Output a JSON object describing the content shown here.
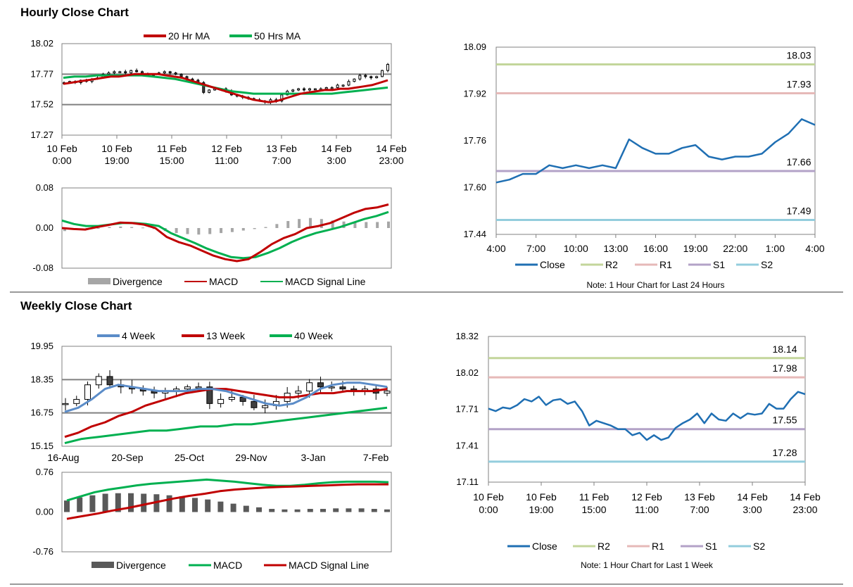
{
  "sections": {
    "hourly_title": "Hourly Close Chart",
    "weekly_title": "Weekly Close Chart"
  },
  "colors": {
    "red": "#c00000",
    "green": "#00b050",
    "blue": "#1f6fb3",
    "weekblue": "#5b8cc8",
    "r2": "#c3d69b",
    "r1": "#e6b9b8",
    "s1": "#b3a2c7",
    "s2": "#93cddd",
    "grid": "#808080",
    "bar": "#a6a6a6",
    "darkbar": "#595959"
  },
  "chart_data": [
    {
      "id": "hourly_price",
      "type": "candlestick",
      "ylim": [
        17.27,
        18.02
      ],
      "yticks": [
        "18.02",
        "17.77",
        "17.52",
        "17.27"
      ],
      "xticks": [
        [
          "10 Feb",
          "0:00"
        ],
        [
          "10 Feb",
          "19:00"
        ],
        [
          "11 Feb",
          "15:00"
        ],
        [
          "12 Feb",
          "11:00"
        ],
        [
          "13 Feb",
          "7:00"
        ],
        [
          "14 Feb",
          "3:00"
        ],
        [
          "14 Feb",
          "23:00"
        ]
      ],
      "legend": [
        "20 Hr MA",
        "50 Hrs MA"
      ],
      "close": [
        17.7,
        17.71,
        17.7,
        17.72,
        17.71,
        17.73,
        17.74,
        17.77,
        17.78,
        17.79,
        17.79,
        17.78,
        17.8,
        17.79,
        17.77,
        17.76,
        17.77,
        17.78,
        17.79,
        17.78,
        17.77,
        17.75,
        17.73,
        17.72,
        17.7,
        17.62,
        17.64,
        17.65,
        17.65,
        17.63,
        17.6,
        17.59,
        17.58,
        17.57,
        17.56,
        17.55,
        17.54,
        17.56,
        17.55,
        17.6,
        17.63,
        17.64,
        17.65,
        17.64,
        17.65,
        17.65,
        17.65,
        17.66,
        17.66,
        17.68,
        17.68,
        17.71,
        17.73,
        17.76,
        17.75,
        17.74,
        17.75,
        17.8,
        17.85
      ],
      "ma20": [
        17.69,
        17.7,
        17.71,
        17.72,
        17.73,
        17.74,
        17.75,
        17.75,
        17.76,
        17.77,
        17.77,
        17.77,
        17.77,
        17.76,
        17.75,
        17.74,
        17.72,
        17.7,
        17.68,
        17.66,
        17.64,
        17.62,
        17.6,
        17.58,
        17.56,
        17.55,
        17.54,
        17.55,
        17.57,
        17.59,
        17.61,
        17.62,
        17.63,
        17.64,
        17.64,
        17.65,
        17.65,
        17.66,
        17.67,
        17.68,
        17.7,
        17.72
      ],
      "ma50": [
        17.74,
        17.75,
        17.75,
        17.76,
        17.76,
        17.76,
        17.76,
        17.76,
        17.75,
        17.74,
        17.73,
        17.71,
        17.69,
        17.67,
        17.65,
        17.63,
        17.62,
        17.61,
        17.61,
        17.61,
        17.61,
        17.61,
        17.61,
        17.61,
        17.61,
        17.62,
        17.63,
        17.64,
        17.65,
        17.66
      ]
    },
    {
      "id": "hourly_macd",
      "type": "line+bar",
      "ylim": [
        -0.08,
        0.08
      ],
      "yticks": [
        "0.08",
        "0.00",
        "-0.08"
      ],
      "legend": [
        "Divergence",
        "MACD",
        "MACD Signal Line"
      ],
      "divergence": [
        -0.006,
        -0.004,
        -0.002,
        0.0,
        0.002,
        0.003,
        0.002,
        0.001,
        -0.002,
        -0.006,
        -0.01,
        -0.012,
        -0.013,
        -0.012,
        -0.01,
        -0.008,
        -0.005,
        -0.002,
        0.002,
        0.008,
        0.014,
        0.018,
        0.02,
        0.018,
        0.015,
        0.013,
        0.012,
        0.012,
        0.012,
        0.013
      ],
      "macd": [
        0.0,
        -0.002,
        -0.003,
        0.002,
        0.006,
        0.011,
        0.01,
        0.007,
        0.0,
        -0.018,
        -0.028,
        -0.035,
        -0.045,
        -0.055,
        -0.062,
        -0.066,
        -0.062,
        -0.048,
        -0.032,
        -0.02,
        -0.012,
        0.0,
        0.004,
        0.01,
        0.02,
        0.03,
        0.038,
        0.041,
        0.047
      ],
      "signal": [
        0.015,
        0.008,
        0.004,
        0.004,
        0.007,
        0.01,
        0.01,
        0.008,
        0.004,
        -0.01,
        -0.02,
        -0.03,
        -0.041,
        -0.05,
        -0.058,
        -0.06,
        -0.058,
        -0.05,
        -0.04,
        -0.028,
        -0.018,
        -0.01,
        -0.004,
        0.002,
        0.01,
        0.018,
        0.024,
        0.032
      ]
    },
    {
      "id": "hourly_24h",
      "type": "line",
      "ylim": [
        17.44,
        18.09
      ],
      "yticks": [
        "18.09",
        "17.92",
        "17.76",
        "17.60",
        "17.44"
      ],
      "xticks": [
        "4:00",
        "7:00",
        "10:00",
        "13:00",
        "16:00",
        "19:00",
        "22:00",
        "1:00",
        "4:00"
      ],
      "levels": {
        "R2": 18.03,
        "R1": 17.93,
        "S1": 17.66,
        "S2": 17.49
      },
      "level_labels": {
        "R2": "18.03",
        "R1": "17.93",
        "S1": "17.66",
        "S2": "17.49"
      },
      "close": [
        17.62,
        17.63,
        17.65,
        17.65,
        17.68,
        17.67,
        17.68,
        17.67,
        17.68,
        17.67,
        17.77,
        17.74,
        17.72,
        17.72,
        17.74,
        17.75,
        17.71,
        17.7,
        17.71,
        17.71,
        17.72,
        17.76,
        17.79,
        17.84,
        17.82
      ],
      "legend": [
        "Close",
        "R2",
        "R1",
        "S1",
        "S2"
      ],
      "note": "Note: 1 Hour Chart for Last 24 Hours"
    },
    {
      "id": "weekly_price",
      "type": "candlestick",
      "ylim": [
        15.15,
        19.95
      ],
      "yticks": [
        "19.95",
        "18.35",
        "16.75",
        "15.15"
      ],
      "xticks": [
        "16-Aug",
        "20-Sep",
        "25-Oct",
        "29-Nov",
        "3-Jan",
        "7-Feb"
      ],
      "legend": [
        "4 Week",
        "13 Week",
        "40 Week"
      ],
      "close": [
        17.2,
        17.4,
        18.1,
        18.5,
        18.1,
        18.0,
        17.9,
        17.8,
        17.7,
        17.8,
        17.9,
        18.0,
        18.0,
        17.2,
        17.4,
        17.5,
        17.3,
        17.0,
        17.1,
        17.3,
        17.7,
        17.8,
        18.2,
        18.0,
        18.0,
        17.9,
        17.8,
        17.9,
        17.7,
        17.8
      ],
      "wk4": [
        16.8,
        17.0,
        17.4,
        17.9,
        18.1,
        18.0,
        17.9,
        17.8,
        17.8,
        17.8,
        17.9,
        17.9,
        17.8,
        17.6,
        17.4,
        17.2,
        17.1,
        17.2,
        17.5,
        17.9,
        18.1,
        18.2,
        18.2,
        18.1,
        18.0
      ],
      "wk13": [
        15.6,
        15.8,
        16.1,
        16.3,
        16.6,
        16.8,
        17.1,
        17.3,
        17.5,
        17.7,
        17.8,
        17.9,
        17.9,
        17.8,
        17.7,
        17.6,
        17.5,
        17.5,
        17.6,
        17.7,
        17.7,
        17.8,
        17.8,
        17.8,
        17.9
      ],
      "wk40": [
        15.3,
        15.5,
        15.6,
        15.7,
        15.8,
        15.9,
        15.9,
        16.0,
        16.1,
        16.1,
        16.2,
        16.2,
        16.3,
        16.4,
        16.5,
        16.6,
        16.7,
        16.8,
        16.9,
        17.0
      ]
    },
    {
      "id": "weekly_macd",
      "type": "line+bar",
      "ylim": [
        -0.76,
        0.76
      ],
      "yticks": [
        "0.76",
        "0.00",
        "-0.76"
      ],
      "legend": [
        "Divergence",
        "MACD",
        "MACD Signal Line"
      ],
      "divergence": [
        0.22,
        0.28,
        0.32,
        0.35,
        0.36,
        0.36,
        0.35,
        0.34,
        0.32,
        0.3,
        0.27,
        0.24,
        0.2,
        0.16,
        0.12,
        0.09,
        0.06,
        0.05,
        0.05,
        0.06,
        0.06,
        0.07,
        0.07,
        0.07,
        0.06,
        0.05
      ],
      "macd": [
        0.22,
        0.3,
        0.38,
        0.43,
        0.47,
        0.51,
        0.54,
        0.56,
        0.58,
        0.6,
        0.62,
        0.6,
        0.58,
        0.55,
        0.52,
        0.5,
        0.5,
        0.52,
        0.55,
        0.57,
        0.58,
        0.58,
        0.58,
        0.57
      ],
      "signal": [
        -0.13,
        -0.08,
        -0.03,
        0.03,
        0.08,
        0.14,
        0.2,
        0.26,
        0.31,
        0.35,
        0.4,
        0.43,
        0.45,
        0.47,
        0.48,
        0.49,
        0.5,
        0.51,
        0.52,
        0.53,
        0.53,
        0.53
      ]
    },
    {
      "id": "weekly_1wk",
      "type": "line",
      "ylim": [
        17.11,
        18.32
      ],
      "yticks": [
        "18.32",
        "18.02",
        "17.71",
        "17.41",
        "17.11"
      ],
      "xticks": [
        [
          "10 Feb",
          "0:00"
        ],
        [
          "10 Feb",
          "19:00"
        ],
        [
          "11 Feb",
          "15:00"
        ],
        [
          "12 Feb",
          "11:00"
        ],
        [
          "13 Feb",
          "7:00"
        ],
        [
          "14 Feb",
          "3:00"
        ],
        [
          "14 Feb",
          "23:00"
        ]
      ],
      "levels": {
        "R2": 18.14,
        "R1": 17.98,
        "S1": 17.55,
        "S2": 17.28
      },
      "level_labels": {
        "R2": "18.14",
        "R1": "17.98",
        "S1": "17.55",
        "S2": "17.28"
      },
      "close": [
        17.72,
        17.7,
        17.73,
        17.72,
        17.75,
        17.8,
        17.78,
        17.82,
        17.75,
        17.79,
        17.8,
        17.76,
        17.78,
        17.7,
        17.58,
        17.62,
        17.6,
        17.58,
        17.55,
        17.55,
        17.5,
        17.52,
        17.46,
        17.5,
        17.46,
        17.48,
        17.56,
        17.6,
        17.63,
        17.68,
        17.6,
        17.68,
        17.63,
        17.62,
        17.68,
        17.64,
        17.68,
        17.67,
        17.68,
        17.76,
        17.72,
        17.72,
        17.8,
        17.86,
        17.84
      ],
      "legend": [
        "Close",
        "R2",
        "R1",
        "S1",
        "S2"
      ],
      "note": "Note: 1 Hour Chart for Last 1 Week"
    }
  ]
}
